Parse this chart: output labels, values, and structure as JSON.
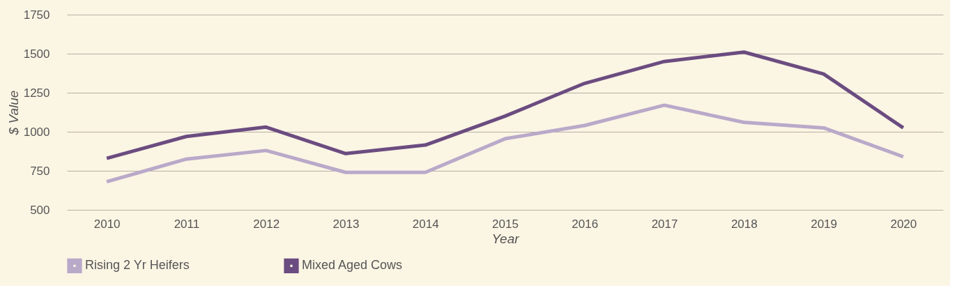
{
  "chart_data": {
    "type": "line",
    "xlabel": "Year",
    "ylabel": "$ Value",
    "categories": [
      "2010",
      "2011",
      "2012",
      "2013",
      "2014",
      "2015",
      "2016",
      "2017",
      "2018",
      "2019",
      "2020"
    ],
    "series": [
      {
        "name": "Rising 2 Yr Heifers",
        "color": "#b9a9c9",
        "values": [
          680,
          825,
          880,
          740,
          740,
          955,
          1040,
          1170,
          1060,
          1025,
          840
        ]
      },
      {
        "name": "Mixed Aged Cows",
        "color": "#6b4c80",
        "values": [
          830,
          970,
          1030,
          860,
          915,
          1100,
          1310,
          1450,
          1510,
          1370,
          1025
        ]
      }
    ],
    "ylim": [
      500,
      1750
    ],
    "yticks": [
      500,
      750,
      1000,
      1250,
      1500,
      1750
    ],
    "grid": "y",
    "legend": "bottom",
    "marker": "none",
    "line_style": "solid"
  }
}
